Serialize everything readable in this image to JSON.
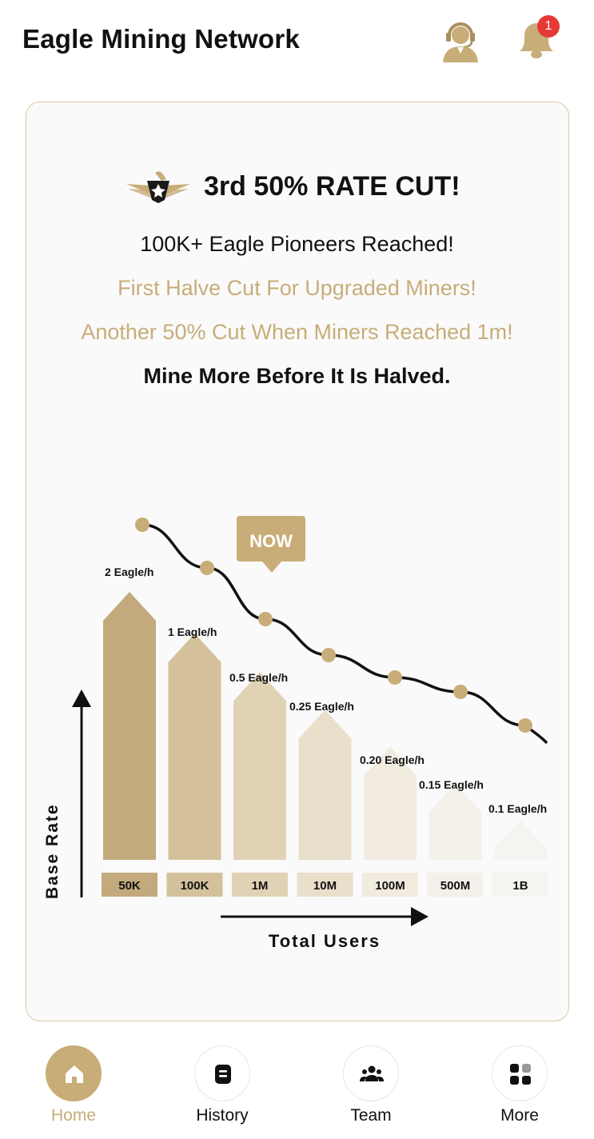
{
  "header": {
    "title": "Eagle Mining Network",
    "notification_count": "1"
  },
  "banner": {
    "headline": "3rd 50% RATE CUT!",
    "line1": "100K+ Eagle Pioneers Reached!",
    "line2": "First Halve Cut For Upgraded Miners!",
    "line3": "Another 50% Cut When Miners Reached 1m!",
    "line4": "Mine More Before It Is Halved."
  },
  "chart_data": {
    "type": "bar",
    "categories": [
      "50K",
      "100K",
      "1M",
      "10M",
      "100M",
      "500M",
      "1B"
    ],
    "values": [
      2,
      1,
      0.5,
      0.25,
      0.2,
      0.15,
      0.1
    ],
    "data_labels": [
      "2 Eagle/h",
      "1 Eagle/h",
      "0.5 Eagle/h",
      "0.25 Eagle/h",
      "0.20 Eagle/h",
      "0.15 Eagle/h",
      "0.1 Eagle/h"
    ],
    "xlabel": "Total Users",
    "ylabel": "Base Rate",
    "current_marker": "NOW",
    "current_index": 2,
    "colors": [
      "#c2aa7c",
      "#d4c19c",
      "#e0d2b5",
      "#e9dfca",
      "#f1ebe0",
      "#f4f0ea",
      "#f6f4f0"
    ],
    "accent": "#c8ad78"
  },
  "nav": {
    "items": [
      {
        "label": "Home",
        "active": true
      },
      {
        "label": "History",
        "active": false
      },
      {
        "label": "Team",
        "active": false
      },
      {
        "label": "More",
        "active": false
      }
    ]
  }
}
